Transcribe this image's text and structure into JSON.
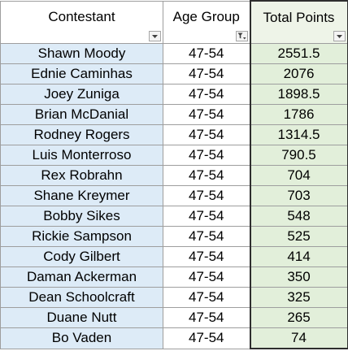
{
  "table": {
    "headers": {
      "contestant": "Contestant",
      "age_group": "Age Group",
      "total_points": "Total Points"
    },
    "filter_icons": {
      "contestant": "dropdown-arrow-icon",
      "age_group": "active-filter-icon",
      "total_points": "dropdown-arrow-icon"
    },
    "rows": [
      {
        "contestant": "Shawn Moody",
        "age_group": "47-54",
        "total_points": "2551.5"
      },
      {
        "contestant": "Ednie Caminhas",
        "age_group": "47-54",
        "total_points": "2076"
      },
      {
        "contestant": "Joey Zuniga",
        "age_group": "47-54",
        "total_points": "1898.5"
      },
      {
        "contestant": "Brian McDanial",
        "age_group": "47-54",
        "total_points": "1786"
      },
      {
        "contestant": "Rodney Rogers",
        "age_group": "47-54",
        "total_points": "1314.5"
      },
      {
        "contestant": "Luis Monterroso",
        "age_group": "47-54",
        "total_points": "790.5"
      },
      {
        "contestant": "Rex Robrahn",
        "age_group": "47-54",
        "total_points": "704"
      },
      {
        "contestant": "Shane Kreymer",
        "age_group": "47-54",
        "total_points": "703"
      },
      {
        "contestant": "Bobby Sikes",
        "age_group": "47-54",
        "total_points": "548"
      },
      {
        "contestant": "Rickie Sampson",
        "age_group": "47-54",
        "total_points": "525"
      },
      {
        "contestant": "Cody Gilbert",
        "age_group": "47-54",
        "total_points": "414"
      },
      {
        "contestant": "Daman Ackerman",
        "age_group": "47-54",
        "total_points": "350"
      },
      {
        "contestant": "Dean Schoolcraft",
        "age_group": "47-54",
        "total_points": "325"
      },
      {
        "contestant": "Duane Nutt",
        "age_group": "47-54",
        "total_points": "265"
      },
      {
        "contestant": "Bo Vaden",
        "age_group": "47-54",
        "total_points": "74"
      }
    ]
  },
  "colors": {
    "name_fill": "#ddebf7",
    "points_fill": "#e2efda",
    "points_header_fill": "#eef4e8",
    "grid_line": "#9e9e9e",
    "highlight_border": "#2e2e2e"
  }
}
